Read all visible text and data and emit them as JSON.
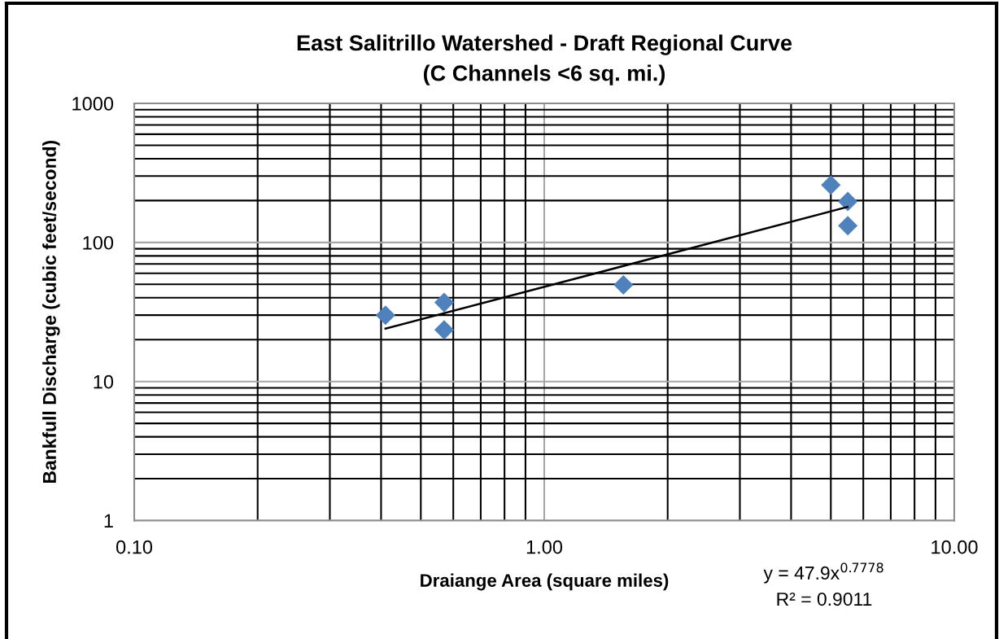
{
  "chart_data": {
    "type": "scatter",
    "title": "East Salitrillo Watershed - Draft Regional Curve\n(C Channels <6 sq. mi.)",
    "xlabel": "Draiange Area (square miles)",
    "ylabel": "Bankfull Discharge (cubic feet/second)",
    "annotations": [
      "y = 47.9x$^{0.7778}$",
      "R² = 0.9011"
    ],
    "log": "xy",
    "xlim": [
      0.1,
      10
    ],
    "ylim": [
      1,
      1000
    ],
    "xticks": [
      {
        "value": 0.1,
        "label": "0.10"
      },
      {
        "value": 1,
        "label": "1.00"
      },
      {
        "value": 10,
        "label": "10.00"
      }
    ],
    "yticks": [
      1,
      10,
      100,
      1000
    ],
    "grid": true,
    "legend": false,
    "marker": "diamond",
    "series": [
      {
        "color": "#4f81bd",
        "x": [
          0.41,
          0.57,
          0.57,
          1.56,
          5.0,
          5.5,
          5.5
        ],
        "values": [
          30,
          37,
          23.5,
          49.5,
          259,
          197,
          132
        ]
      },
      {
        "type": "line",
        "color": "#000000",
        "marker": "none",
        "line_style": "solid",
        "x": [
          0.41,
          5.49
        ],
        "values": [
          24,
          180
        ]
      }
    ]
  }
}
